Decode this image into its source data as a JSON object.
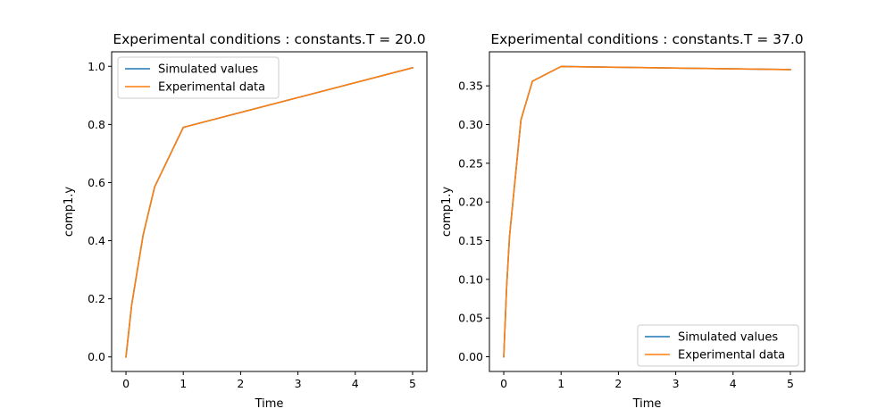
{
  "chart_data": [
    {
      "type": "line",
      "title": "Experimental conditions : constants.T = 20.0",
      "xlabel": "Time",
      "ylabel": "comp1.y",
      "xlim": [
        -0.25,
        5.25
      ],
      "ylim": [
        -0.05,
        1.05
      ],
      "xticks": [
        0,
        1,
        2,
        3,
        4,
        5
      ],
      "xtick_labels": [
        "0",
        "1",
        "2",
        "3",
        "4",
        "5"
      ],
      "yticks": [
        0.0,
        0.2,
        0.4,
        0.6,
        0.8,
        1.0
      ],
      "ytick_labels": [
        "0.0",
        "0.2",
        "0.4",
        "0.6",
        "0.8",
        "1.0"
      ],
      "grid": false,
      "legend_position": "top-left",
      "series": [
        {
          "name": "Simulated values",
          "color": "#1f77b4",
          "x": [
            0,
            0.1,
            0.3,
            0.5,
            1,
            5
          ],
          "y": [
            0.0,
            0.18,
            0.42,
            0.585,
            0.79,
            0.995
          ]
        },
        {
          "name": "Experimental data",
          "color": "#ff7f0e",
          "x": [
            0,
            0.1,
            0.3,
            0.5,
            1,
            5
          ],
          "y": [
            0.0,
            0.18,
            0.42,
            0.585,
            0.79,
            0.995
          ]
        }
      ]
    },
    {
      "type": "line",
      "title": "Experimental conditions : constants.T = 37.0",
      "xlabel": "Time",
      "ylabel": "comp1.y",
      "xlim": [
        -0.25,
        5.25
      ],
      "ylim": [
        -0.019,
        0.394
      ],
      "xticks": [
        0,
        1,
        2,
        3,
        4,
        5
      ],
      "xtick_labels": [
        "0",
        "1",
        "2",
        "3",
        "4",
        "5"
      ],
      "yticks": [
        0.0,
        0.05,
        0.1,
        0.15,
        0.2,
        0.25,
        0.3,
        0.35
      ],
      "ytick_labels": [
        "0.00",
        "0.05",
        "0.10",
        "0.15",
        "0.20",
        "0.25",
        "0.30",
        "0.35"
      ],
      "grid": false,
      "legend_position": "bottom-right",
      "series": [
        {
          "name": "Simulated values",
          "color": "#1f77b4",
          "x": [
            0,
            0.05,
            0.1,
            0.3,
            0.5,
            1,
            5
          ],
          "y": [
            0.0,
            0.09,
            0.155,
            0.306,
            0.356,
            0.375,
            0.371
          ]
        },
        {
          "name": "Experimental data",
          "color": "#ff7f0e",
          "x": [
            0,
            0.05,
            0.1,
            0.3,
            0.5,
            1,
            5
          ],
          "y": [
            0.0,
            0.09,
            0.155,
            0.306,
            0.356,
            0.375,
            0.371
          ]
        }
      ]
    }
  ]
}
